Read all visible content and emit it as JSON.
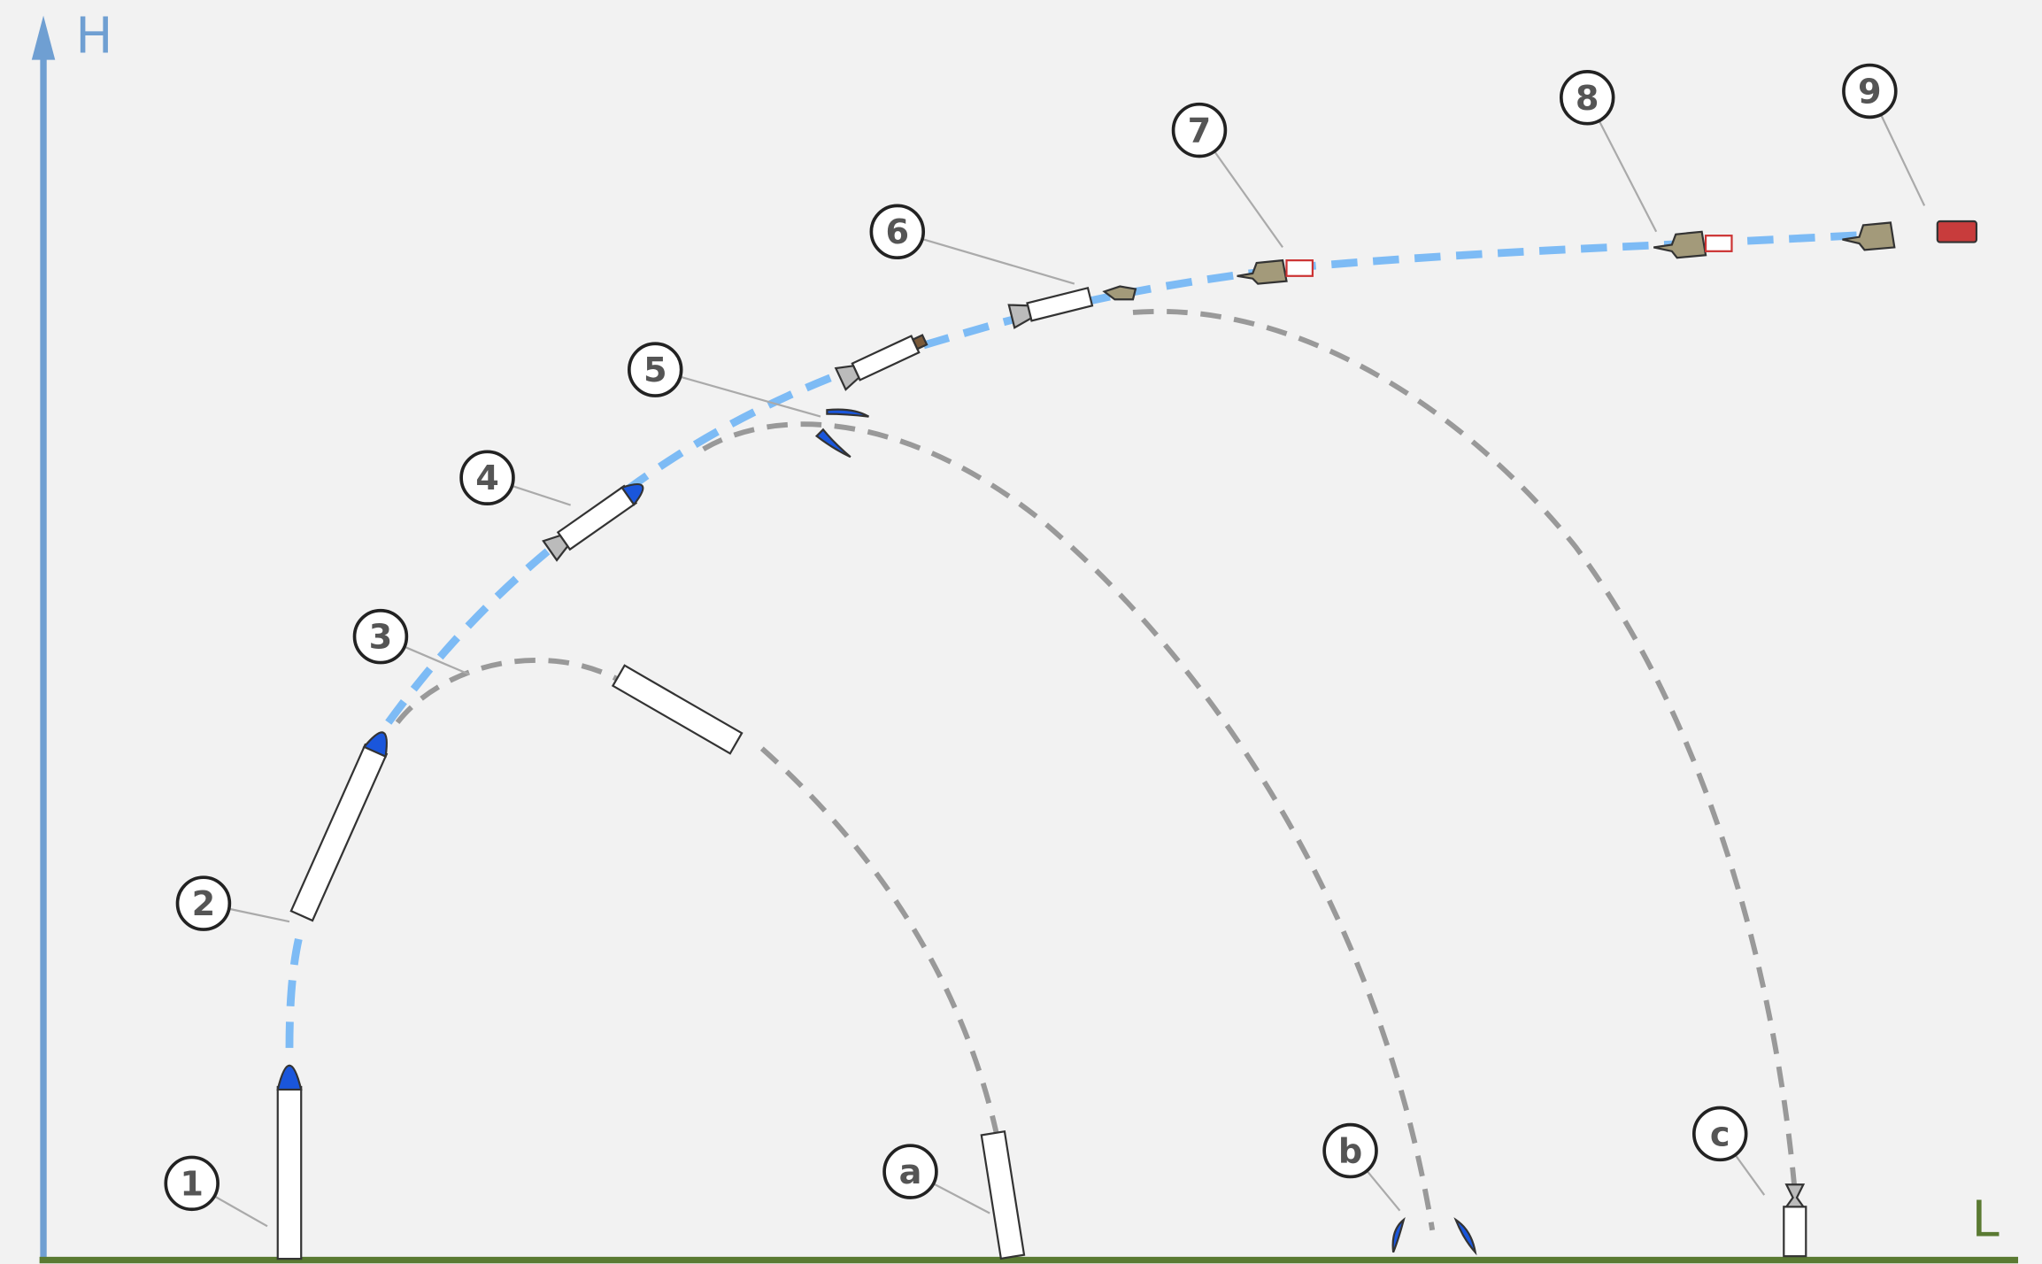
{
  "axes": {
    "y_label": "H",
    "x_label": "L"
  },
  "callouts": [
    {
      "label": "1"
    },
    {
      "label": "2"
    },
    {
      "label": "3"
    },
    {
      "label": "4"
    },
    {
      "label": "5"
    },
    {
      "label": "6"
    },
    {
      "label": "7"
    },
    {
      "label": "8"
    },
    {
      "label": "9"
    },
    {
      "label": "a"
    },
    {
      "label": "b"
    },
    {
      "label": "c"
    }
  ]
}
